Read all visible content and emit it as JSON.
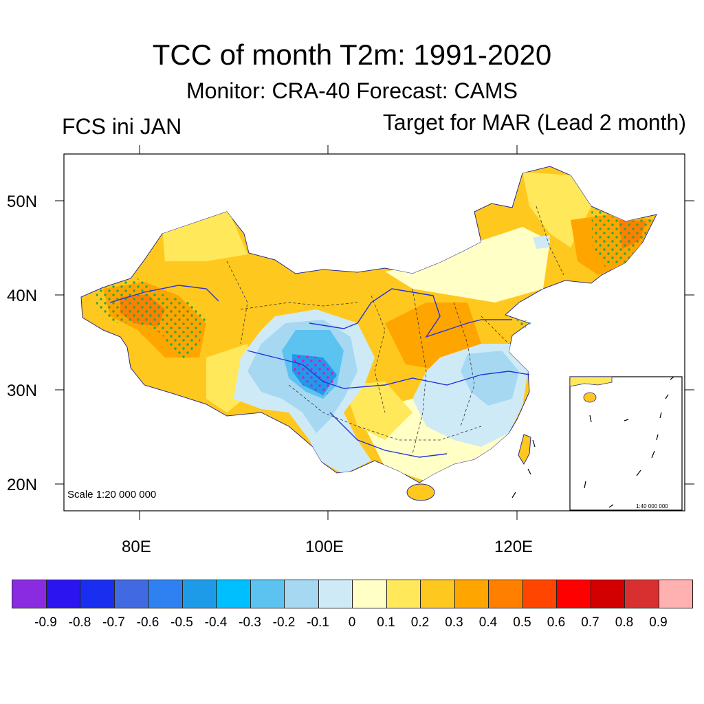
{
  "title": "TCC of month T2m: 1991-2020",
  "subtitle": "Monitor: CRA-40   Forecast: CAMS",
  "left_label": "FCS ini JAN",
  "right_label": "Target for MAR (Lead 2 month)",
  "scale_main": "Scale 1:20 000 000",
  "scale_inset": "1:40 000 000",
  "lat_labels": [
    "50N",
    "40N",
    "30N",
    "20N"
  ],
  "lon_labels": [
    "80E",
    "100E",
    "120E"
  ],
  "colorbar": {
    "colors": [
      "#8a2be2",
      "#2b14f0",
      "#1a2ef0",
      "#4169e1",
      "#2f80f0",
      "#1e9be8",
      "#00bfff",
      "#5cc3f0",
      "#a6d8f2",
      "#cfeaf7",
      "#ffffc6",
      "#ffe85a",
      "#ffc81e",
      "#ffa500",
      "#ff7f00",
      "#ff4500",
      "#ff0000",
      "#d20000",
      "#d83030",
      "#ffb0b0"
    ],
    "labels": [
      "-0.9",
      "-0.8",
      "-0.7",
      "-0.6",
      "-0.5",
      "-0.4",
      "-0.3",
      "-0.2",
      "-0.1",
      "0",
      "0.1",
      "0.2",
      "0.3",
      "0.4",
      "0.5",
      "0.6",
      "0.7",
      "0.8",
      "0.9"
    ]
  },
  "legend_colors": {
    "land_base": "#ffc81e",
    "stipple": "#22aa44",
    "river": "#2233dd",
    "boundary": "#333333"
  }
}
